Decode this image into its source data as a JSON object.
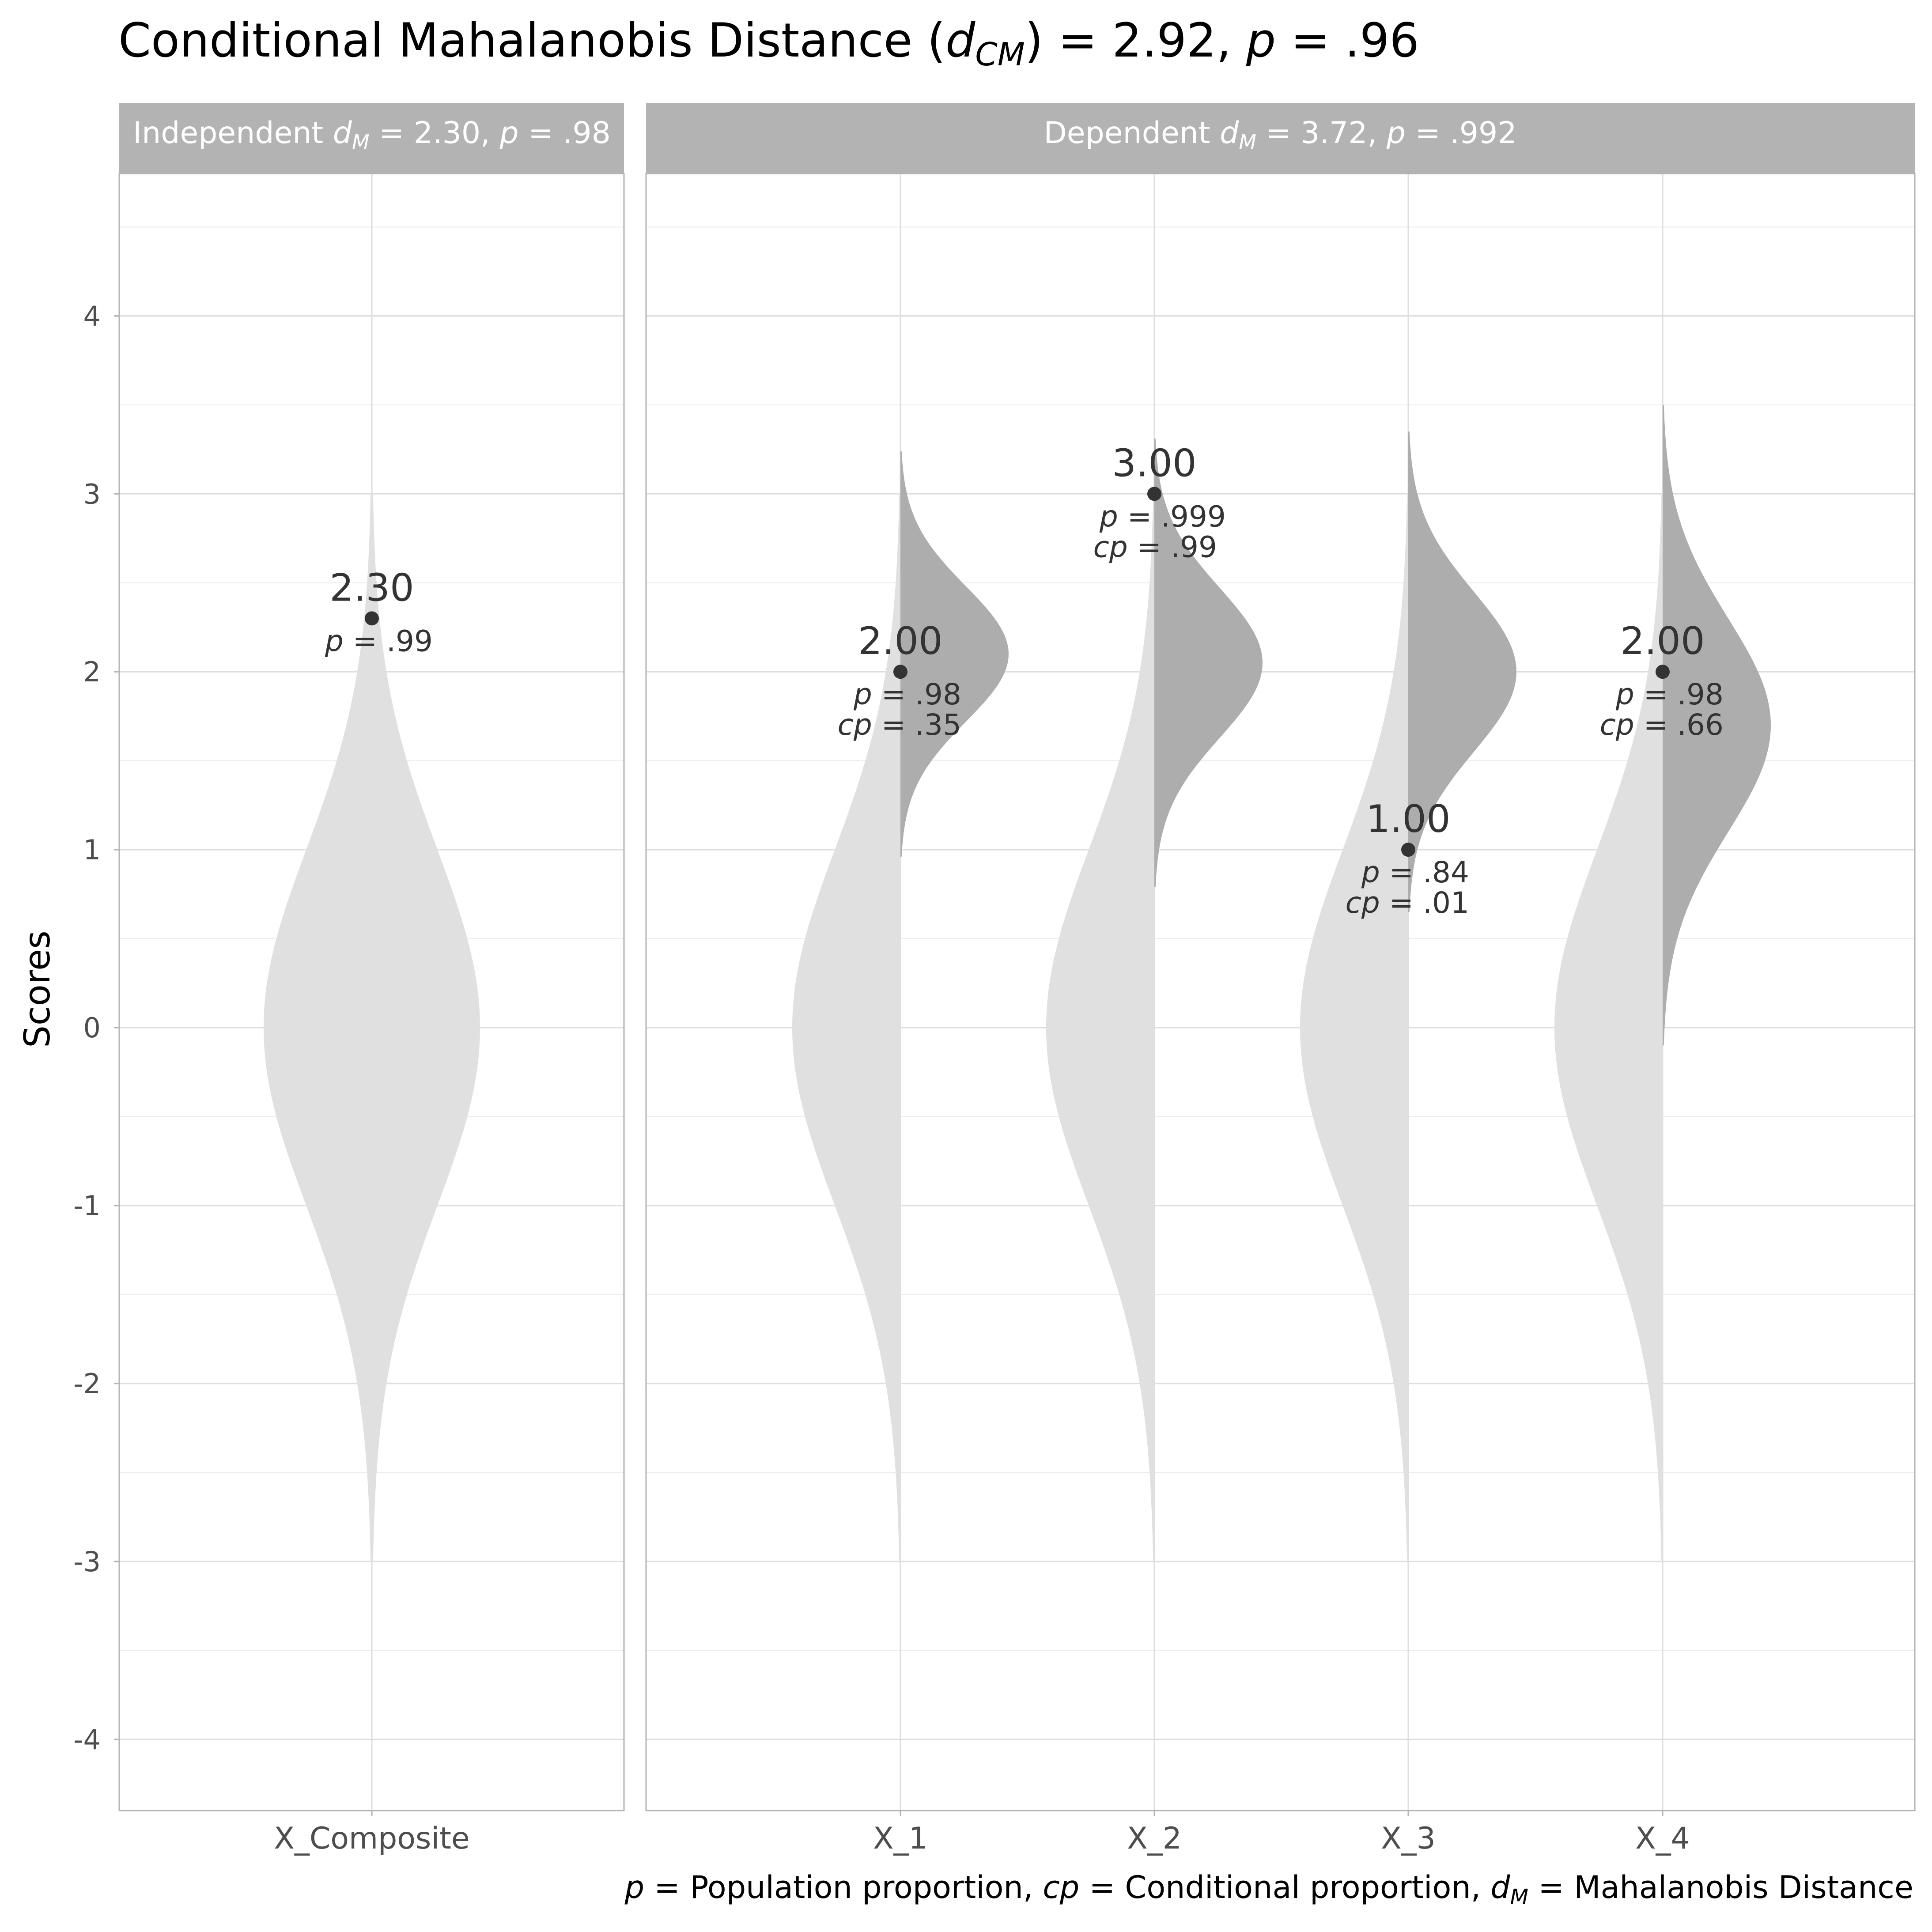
{
  "chart_data": {
    "type": "violin",
    "title": {
      "lead": "Conditional Mahalanobis Distance ",
      "open": "(",
      "sym": "d",
      "sub": "CM",
      "close": ")",
      "rest": " = 2.92, ",
      "p": "p",
      "p_rest": " = .96"
    },
    "ylabel": "Scores",
    "ylim": [
      -4.4,
      4.8
    ],
    "y_ticks": [
      -4,
      -3,
      -2,
      -1,
      0,
      1,
      2,
      3,
      4
    ],
    "y_tick_labels": [
      "-4",
      "-3",
      "-2",
      "-1",
      "0",
      "1",
      "2",
      "3",
      "4"
    ],
    "grid": true,
    "facets": [
      {
        "strip": {
          "lead": "Independent ",
          "sym": "d",
          "sub": "M",
          "rest": " = 2.30, ",
          "p": "p",
          "p_rest": " = .98"
        },
        "variables": [
          {
            "name": "X_Composite",
            "score": 2.3,
            "score_label": "2.30",
            "p_label": " = .99",
            "cp_label": "",
            "conditional_mean": null,
            "conditional_sd": null
          }
        ]
      },
      {
        "strip": {
          "lead": "Dependent ",
          "sym": "d",
          "sub": "M",
          "rest": " = 3.72, ",
          "p": "p",
          "p_rest": " = .992"
        },
        "variables": [
          {
            "name": "X_1",
            "score": 2.0,
            "score_label": "2.00",
            "p_label": " = .98",
            "cp_label": " = .35",
            "conditional_mean": 2.1,
            "conditional_sd": 0.38
          },
          {
            "name": "X_2",
            "score": 3.0,
            "score_label": "3.00",
            "p_label": " = .999",
            "cp_label": " = .99",
            "conditional_mean": 2.05,
            "conditional_sd": 0.42
          },
          {
            "name": "X_3",
            "score": 1.0,
            "score_label": "1.00",
            "p_label": " = .84",
            "cp_label": " = .01",
            "conditional_mean": 2.0,
            "conditional_sd": 0.45
          },
          {
            "name": "X_4",
            "score": 2.0,
            "score_label": "2.00",
            "p_label": " = .98",
            "cp_label": " = .66",
            "conditional_mean": 1.7,
            "conditional_sd": 0.6
          }
        ]
      }
    ],
    "population_distribution": {
      "mean": 0,
      "sd": 1
    },
    "caption": {
      "p": "p",
      "p_text": " = Population proportion, ",
      "cp": "cp",
      "cp_text": " = Conditional proportion, ",
      "d": "d",
      "d_sub": "M",
      "d_text": " = Mahalanobis Distance"
    },
    "colors": {
      "population_fill": "#e0e0e0",
      "conditional_fill": "#adadad",
      "strip_fill": "#b3b3b3",
      "strip_text": "#ffffff",
      "panel_border": "#b3b3b3",
      "grid_major": "#dedede",
      "grid_minor": "#ececec",
      "point": "#333333",
      "annotation_text": "#333333",
      "axis_text": "#4d4d4d",
      "title_text": "#000000"
    }
  }
}
